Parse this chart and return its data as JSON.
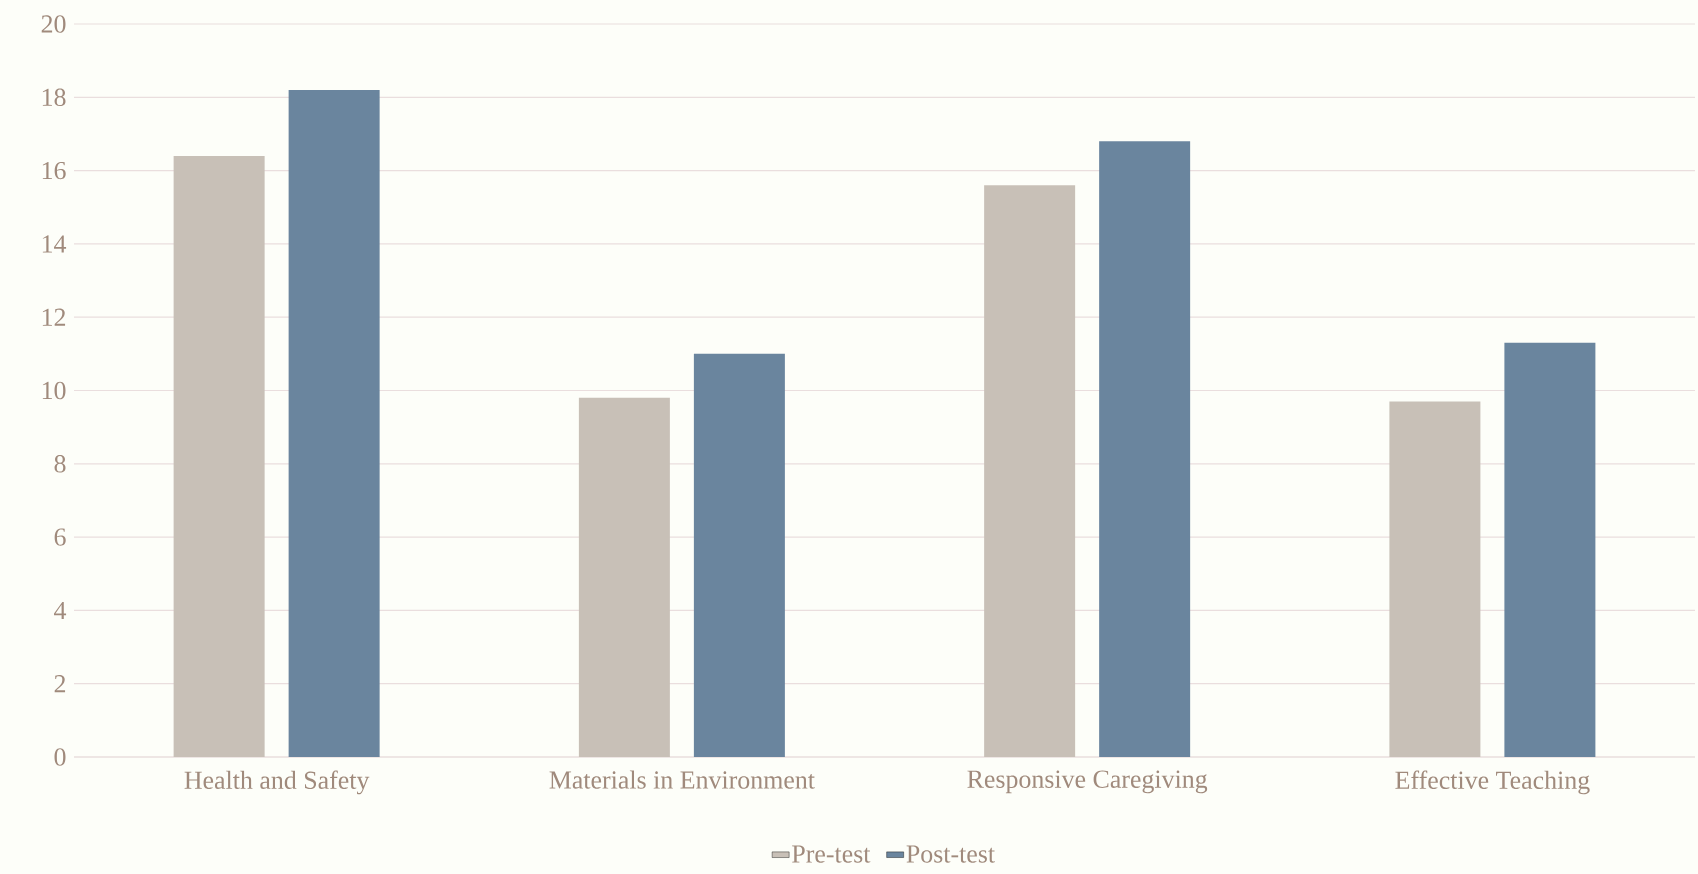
{
  "chart_data": {
    "type": "bar",
    "categories": [
      "Health and Safety",
      "Materials in Environment",
      "Responsive Caregiving",
      "Effective Teaching"
    ],
    "series": [
      {
        "name": "Pre-test",
        "color": "#c8c0b7",
        "values": [
          16.4,
          9.8,
          15.6,
          9.7
        ]
      },
      {
        "name": "Post-test",
        "color": "#6a859e",
        "values": [
          18.2,
          11.0,
          16.8,
          11.3
        ]
      }
    ],
    "ylim": [
      0,
      20
    ],
    "yticks": [
      0,
      2,
      4,
      6,
      8,
      10,
      12,
      14,
      16,
      18,
      20
    ],
    "grid": "y",
    "legend": "bottom"
  }
}
